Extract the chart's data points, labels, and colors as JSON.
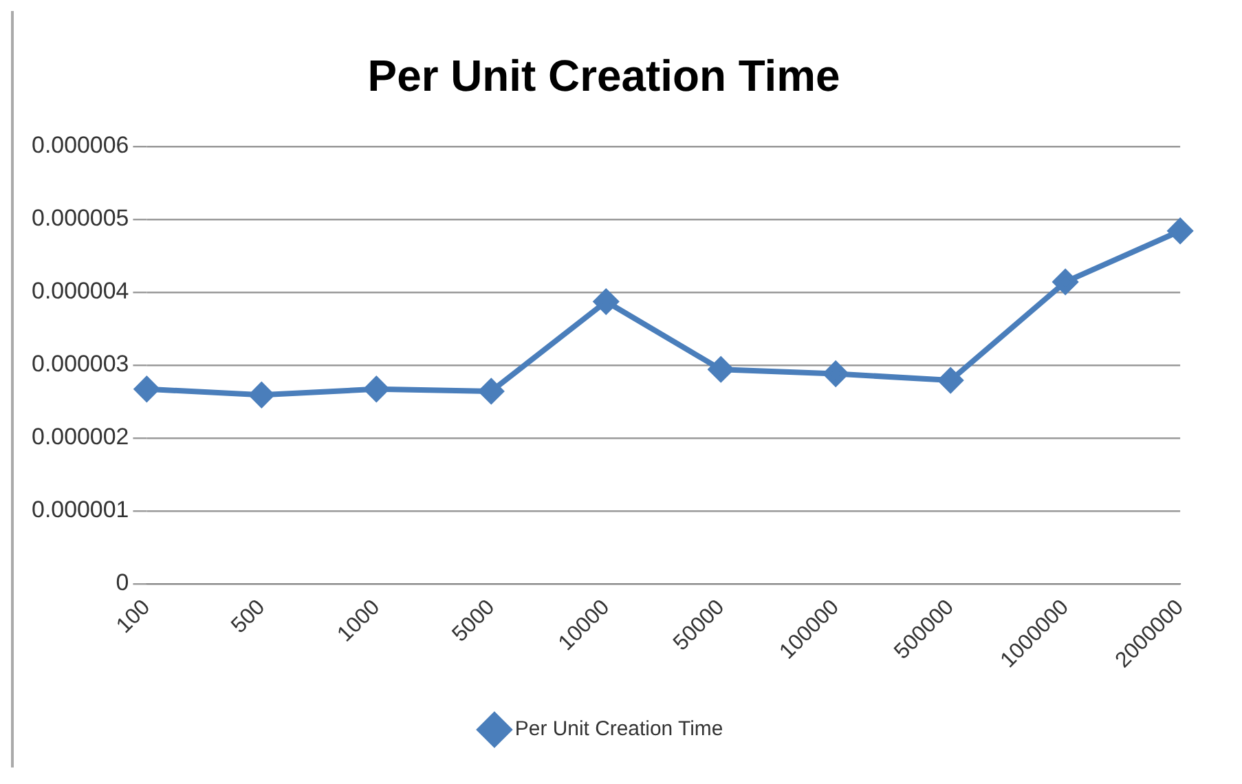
{
  "chart_data": {
    "type": "line",
    "title": "Per Unit Creation Time",
    "categories": [
      "100",
      "500",
      "1000",
      "5000",
      "10000",
      "50000",
      "100000",
      "500000",
      "1000000",
      "2000000"
    ],
    "series": [
      {
        "name": "Per Unit Creation Time",
        "color": "#4a7ebb",
        "values": [
          2.67e-06,
          2.59e-06,
          2.67e-06,
          2.64e-06,
          3.87e-06,
          2.94e-06,
          2.88e-06,
          2.79e-06,
          4.14e-06,
          4.84e-06
        ]
      }
    ],
    "ylim": [
      0,
      6e-06
    ],
    "yticks": [
      {
        "value": 0,
        "label": "0"
      },
      {
        "value": 1e-06,
        "label": "0.000001"
      },
      {
        "value": 2e-06,
        "label": "0.000002"
      },
      {
        "value": 3e-06,
        "label": "0.000003"
      },
      {
        "value": 4e-06,
        "label": "0.000004"
      },
      {
        "value": 5e-06,
        "label": "0.000005"
      },
      {
        "value": 6e-06,
        "label": "0.000006"
      }
    ],
    "grid": "y",
    "legend": "bottom",
    "marker": "diamond",
    "line_style": "solid"
  }
}
